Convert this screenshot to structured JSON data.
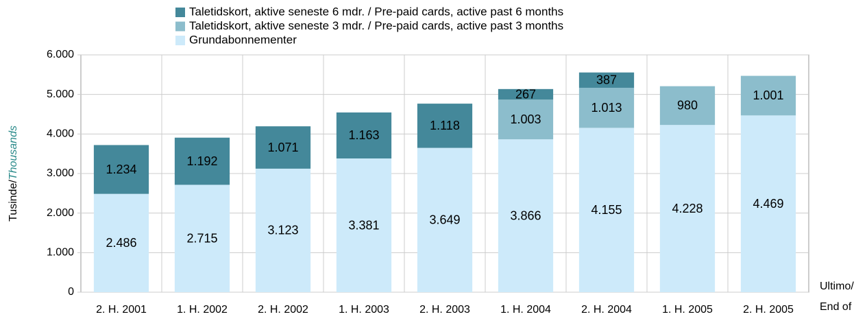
{
  "chart_data": {
    "type": "stacked_bar",
    "y_label": "Tusinde/",
    "y_label_italic": "Thousands",
    "x_label": [
      "Ultimo/",
      "End of"
    ],
    "categories": [
      "2. H. 2001",
      "1. H. 2002",
      "2. H. 2002",
      "1. H. 2003",
      "2. H. 2003",
      "1. H. 2004",
      "2. H. 2004",
      "1. H. 2005",
      "2. H. 2005"
    ],
    "series": [
      {
        "name": "Grundabonnementer",
        "color": "#cdeafa",
        "values": [
          2486,
          2715,
          3123,
          3381,
          3649,
          3866,
          4155,
          4228,
          4469
        ],
        "value_labels": [
          "2.486",
          "2.715",
          "3.123",
          "3.381",
          "3.649",
          "3.866",
          "4.155",
          "4.228",
          "4.469"
        ]
      },
      {
        "name": "Taletidskort, aktive seneste 3 mdr. / Pre-paid cards, active past 3 months",
        "color": "#8cbdcc",
        "values": [
          null,
          null,
          null,
          null,
          null,
          1003,
          1013,
          980,
          1001
        ],
        "value_labels": [
          null,
          null,
          null,
          null,
          null,
          "1.003",
          "1.013",
          "980",
          "1.001"
        ]
      },
      {
        "name": "Taletidskort, aktive seneste 6 mdr. / Pre-paid cards, active past 6 months",
        "color": "#44889a",
        "values": [
          1234,
          1192,
          1071,
          1163,
          1118,
          267,
          387,
          null,
          null
        ],
        "value_labels": [
          "1.234",
          "1.192",
          "1.071",
          "1.163",
          "1.118",
          "267",
          "387",
          null,
          null
        ]
      }
    ],
    "ylim": [
      0,
      6000
    ],
    "yticks": [
      0,
      {
        "value": 1000,
        "label": "1.000"
      },
      {
        "value": 2000,
        "label": "2.000"
      },
      {
        "value": 3000,
        "label": "3.000"
      },
      {
        "value": 4000,
        "label": "4.000"
      },
      {
        "value": 5000,
        "label": "5.000"
      },
      {
        "value": 6000,
        "label": "6.000"
      }
    ],
    "grid": true
  }
}
